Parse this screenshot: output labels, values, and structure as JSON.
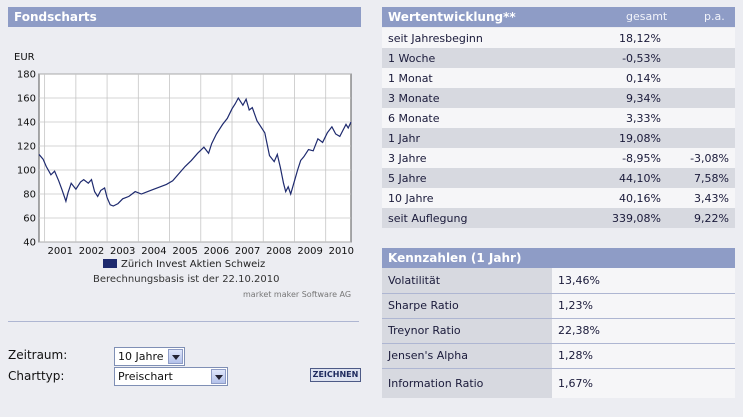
{
  "fondscharts": {
    "title": "Fondscharts",
    "legend": "Zürich Invest Aktien Schweiz",
    "basis": "Berechnungsbasis ist der 22.10.2010",
    "source": "market maker Software AG",
    "zeitraum_label": "Zeitraum:",
    "zeitraum_value": "10 Jahre",
    "charttyp_label": "Charttyp:",
    "charttyp_value": "Preischart",
    "draw_button": "ZEICHNEN"
  },
  "chart_data": {
    "type": "line",
    "ylabel": "EUR",
    "ylim": [
      40,
      180
    ],
    "yticks": [
      "180",
      "160",
      "140",
      "120",
      "100",
      "80",
      "60",
      "40"
    ],
    "xticks": [
      "2001",
      "2002",
      "2003",
      "2004",
      "2005",
      "2006",
      "2007",
      "2008",
      "2009",
      "2010"
    ],
    "xlim": [
      2000.82,
      2010.81
    ],
    "series": [
      {
        "name": "Zürich Invest Aktien Schweiz",
        "color": "#1e2a6e",
        "x": [
          2000.82,
          2000.95,
          2001.05,
          2001.2,
          2001.32,
          2001.45,
          2001.55,
          2001.68,
          2001.75,
          2001.85,
          2002.0,
          2002.15,
          2002.25,
          2002.4,
          2002.5,
          2002.6,
          2002.7,
          2002.8,
          2002.92,
          2003.0,
          2003.1,
          2003.2,
          2003.35,
          2003.5,
          2003.7,
          2003.9,
          2004.1,
          2004.3,
          2004.5,
          2004.7,
          2004.9,
          2005.1,
          2005.3,
          2005.5,
          2005.7,
          2005.9,
          2006.1,
          2006.25,
          2006.35,
          2006.5,
          2006.7,
          2006.85,
          2007.0,
          2007.1,
          2007.2,
          2007.35,
          2007.45,
          2007.55,
          2007.65,
          2007.8,
          2007.9,
          2008.05,
          2008.2,
          2008.35,
          2008.45,
          2008.55,
          2008.65,
          2008.72,
          2008.8,
          2008.88,
          2009.0,
          2009.1,
          2009.2,
          2009.3,
          2009.45,
          2009.6,
          2009.75,
          2009.9,
          2010.05,
          2010.2,
          2010.32,
          2010.45,
          2010.55,
          2010.65,
          2010.72,
          2010.81
        ],
        "values": [
          113,
          109,
          103,
          96,
          99,
          91,
          84,
          74,
          81,
          89,
          84,
          90,
          92,
          89,
          92,
          82,
          78,
          83,
          85,
          77,
          71,
          70,
          72,
          76,
          78,
          82,
          80,
          82,
          84,
          86,
          88,
          91,
          97,
          103,
          108,
          114,
          119,
          114,
          122,
          130,
          138,
          143,
          151,
          155,
          160,
          154,
          159,
          150,
          152,
          141,
          137,
          131,
          112,
          107,
          113,
          102,
          89,
          82,
          86,
          80,
          91,
          100,
          108,
          111,
          117,
          116,
          126,
          123,
          131,
          136,
          130,
          128,
          133,
          138,
          135,
          140
        ]
      }
    ]
  },
  "wertentwicklung": {
    "title": "Wertentwicklung**",
    "col_gesamt": "gesamt",
    "col_pa": "p.a.",
    "rows": [
      {
        "label": "seit Jahresbeginn",
        "gesamt": "18,12%",
        "pa": ""
      },
      {
        "label": "1 Woche",
        "gesamt": "-0,53%",
        "pa": ""
      },
      {
        "label": "1 Monat",
        "gesamt": "0,14%",
        "pa": ""
      },
      {
        "label": "3 Monate",
        "gesamt": "9,34%",
        "pa": ""
      },
      {
        "label": "6 Monate",
        "gesamt": "3,33%",
        "pa": ""
      },
      {
        "label": "1 Jahr",
        "gesamt": "19,08%",
        "pa": ""
      },
      {
        "label": "3 Jahre",
        "gesamt": "-8,95%",
        "pa": "-3,08%"
      },
      {
        "label": "5 Jahre",
        "gesamt": "44,10%",
        "pa": "7,58%"
      },
      {
        "label": "10 Jahre",
        "gesamt": "40,16%",
        "pa": "3,43%"
      },
      {
        "label": "seit Auflegung",
        "gesamt": "339,08%",
        "pa": "9,22%"
      }
    ]
  },
  "kennzahlen": {
    "title": "Kennzahlen (1 Jahr)",
    "rows": [
      {
        "label": "Volatilität",
        "value": "13,46%"
      },
      {
        "label": "Sharpe Ratio",
        "value": "1,23%"
      },
      {
        "label": "Treynor Ratio",
        "value": "22,38%"
      },
      {
        "label": "Jensen's Alpha",
        "value": "1,28%"
      },
      {
        "label": "Information Ratio",
        "value": "1,67%"
      }
    ]
  },
  "colors": {
    "header": "#8e9cc6",
    "line": "#1e2a6e",
    "row_gray": "#d7d9e0",
    "row_white": "#f6f6f8"
  }
}
